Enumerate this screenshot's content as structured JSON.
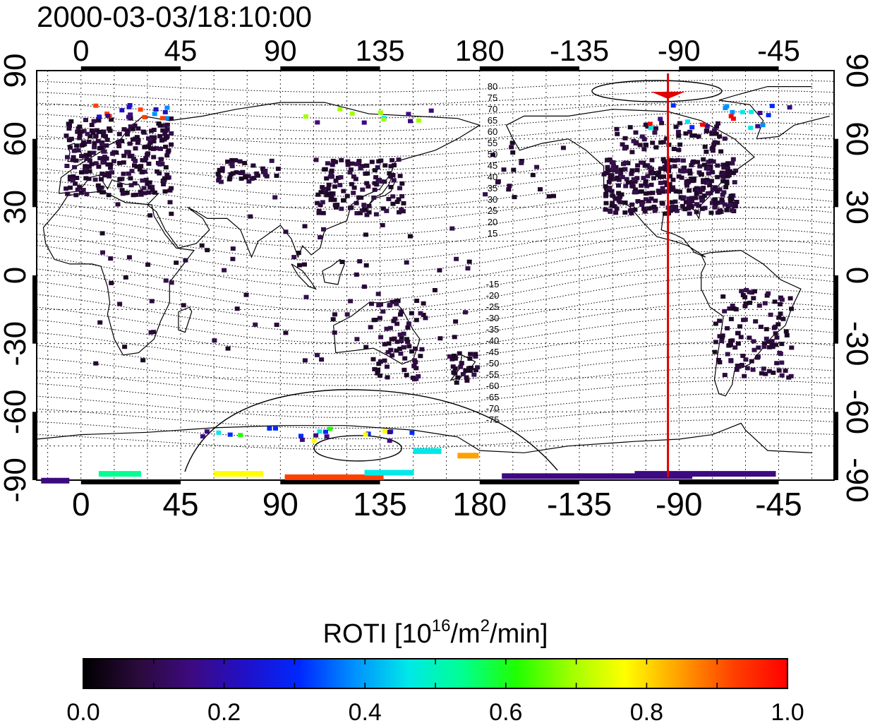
{
  "timestamp": "2000-03-03/18:10:00",
  "x_ticks": [
    "0",
    "45",
    "90",
    "135",
    "180",
    "-135",
    "-90",
    "-45"
  ],
  "y_ticks_left": [
    "90",
    "60",
    "30",
    "0",
    "-30",
    "-60",
    "-90"
  ],
  "y_ticks_right": [
    "90",
    "60",
    "30",
    "0",
    "-30",
    "-60",
    "-90"
  ],
  "contour_labels_north": [
    "80",
    "75",
    "70",
    "65",
    "60",
    "55",
    "50",
    "45",
    "40",
    "35",
    "30",
    "25",
    "20",
    "15"
  ],
  "contour_labels_south": [
    "-15",
    "-20",
    "-25",
    "-30",
    "-35",
    "-40",
    "-45",
    "-50",
    "-55",
    "-60",
    "-65",
    "-70",
    "-75"
  ],
  "colorbar": {
    "label_main": "ROTI  [10",
    "label_sup1": "16",
    "label_mid": "/m",
    "label_sup2": "2",
    "label_end": "/min]",
    "ticks": [
      "0.0",
      "0.2",
      "0.4",
      "0.6",
      "0.8",
      "1.0"
    ],
    "range": [
      0.0,
      1.0
    ],
    "colors": [
      "#000000",
      "#2a0a3a",
      "#3d0a80",
      "#2010c8",
      "#0028ff",
      "#0090ff",
      "#00e8e8",
      "#00ff90",
      "#20ff00",
      "#a0ff00",
      "#ffff00",
      "#ffa000",
      "#ff4000",
      "#ff0000"
    ]
  },
  "meridian_marker": {
    "longitude": -95,
    "color": "#e00000"
  },
  "map": {
    "lon_range": [
      -20,
      340
    ],
    "lat_range": [
      -90,
      90
    ],
    "grid_lon_step": 15,
    "grid_lat_step": 15
  },
  "colors": {
    "low_roti": "#2a0a3a",
    "coast": "#000000",
    "grid": "#000000"
  }
}
